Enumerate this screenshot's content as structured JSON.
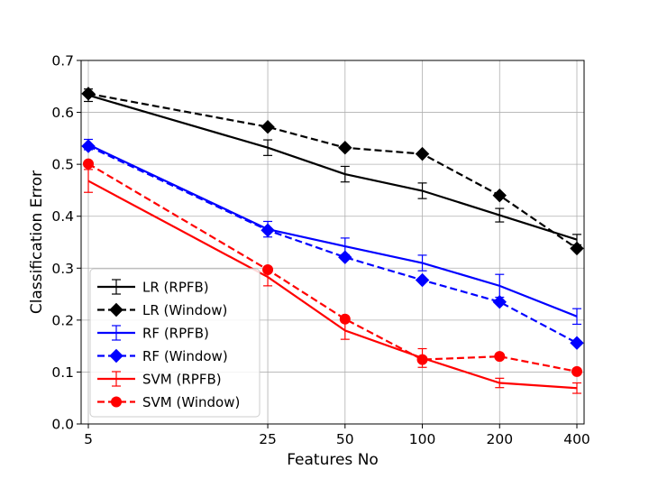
{
  "chart_data": {
    "type": "line",
    "title": "",
    "xlabel": "Features No",
    "ylabel": "Classification Error",
    "x_scale": "log",
    "x": [
      5,
      25,
      50,
      100,
      200,
      400
    ],
    "x_tick_labels": [
      "5",
      "25",
      "50",
      "100",
      "200",
      "400"
    ],
    "ylim": [
      0.0,
      0.7
    ],
    "y_ticks": [
      0.0,
      0.1,
      0.2,
      0.3,
      0.4,
      0.5,
      0.6,
      0.7
    ],
    "y_tick_labels": [
      "0.0",
      "0.1",
      "0.2",
      "0.3",
      "0.4",
      "0.5",
      "0.6",
      "0.7"
    ],
    "grid": true,
    "legend_position": "lower-left",
    "series": [
      {
        "name": "LR (RPFB)",
        "color": "#000000",
        "dash": false,
        "marker": "none",
        "values": [
          0.633,
          0.532,
          0.481,
          0.449,
          0.402,
          0.355
        ],
        "errors": [
          0.012,
          0.015,
          0.015,
          0.015,
          0.013,
          0.01
        ]
      },
      {
        "name": "LR (Window)",
        "color": "#000000",
        "dash": true,
        "marker": "diamond",
        "values": [
          0.636,
          0.572,
          0.532,
          0.52,
          0.44,
          0.338
        ]
      },
      {
        "name": "RF (RPFB)",
        "color": "#0000ff",
        "dash": false,
        "marker": "none",
        "values": [
          0.538,
          0.375,
          0.342,
          0.31,
          0.266,
          0.207
        ],
        "errors": [
          0.01,
          0.015,
          0.016,
          0.015,
          0.022,
          0.015
        ]
      },
      {
        "name": "RF (Window)",
        "color": "#0000ff",
        "dash": true,
        "marker": "diamond",
        "values": [
          0.535,
          0.373,
          0.321,
          0.277,
          0.235,
          0.156
        ]
      },
      {
        "name": "SVM (RPFB)",
        "color": "#ff0000",
        "dash": false,
        "marker": "none",
        "values": [
          0.468,
          0.283,
          0.18,
          0.127,
          0.079,
          0.069
        ],
        "errors": [
          0.022,
          0.017,
          0.017,
          0.018,
          0.009,
          0.01
        ]
      },
      {
        "name": "SVM (Window)",
        "color": "#ff0000",
        "dash": true,
        "marker": "circle",
        "values": [
          0.501,
          0.297,
          0.202,
          0.124,
          0.13,
          0.101
        ]
      }
    ]
  }
}
